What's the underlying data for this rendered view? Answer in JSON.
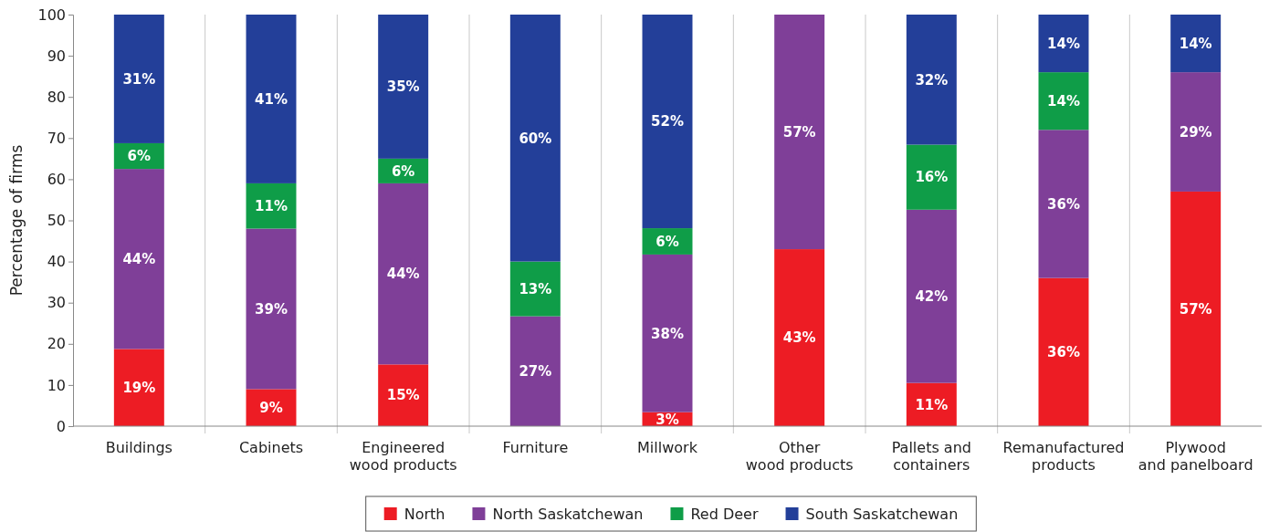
{
  "chart_data": {
    "type": "bar",
    "stacked": true,
    "ylabel": "Percentage of firms",
    "categories": [
      "Buildings",
      "Cabinets",
      "Engineered\nwood products",
      "Furniture",
      "Millwork",
      "Other\nwood products",
      "Pallets and\ncontainers",
      "Remanufactured\nproducts",
      "Plywood\nand panelboard"
    ],
    "series": [
      {
        "name": "North",
        "color": "#ed1c24",
        "values": [
          18.75,
          9,
          15,
          0,
          3.4,
          43,
          10.5,
          36,
          57
        ],
        "value_labels": [
          "19%",
          "9%",
          "15%",
          null,
          "3%",
          "43%",
          "11%",
          "36%",
          "57%"
        ]
      },
      {
        "name": "North Saskatchewan",
        "color": "#7f3f98",
        "values": [
          43.75,
          39,
          44,
          26.7,
          38.3,
          57,
          42.1,
          36,
          29
        ],
        "value_labels": [
          "44%",
          "39%",
          "44%",
          "27%",
          "38%",
          "57%",
          "42%",
          "36%",
          "29%"
        ]
      },
      {
        "name": "Red Deer",
        "color": "#0f9d48",
        "values": [
          6.25,
          11,
          6,
          13.3,
          6.4,
          0,
          15.8,
          14,
          0
        ],
        "value_labels": [
          "6%",
          "11%",
          "6%",
          "13%",
          "6%",
          null,
          "16%",
          "14%",
          null
        ]
      },
      {
        "name": "South Saskatchewan",
        "color": "#233f99",
        "values": [
          31.25,
          41,
          35,
          60,
          51.9,
          0,
          31.6,
          14,
          14
        ],
        "value_labels": [
          "31%",
          "41%",
          "35%",
          "60%",
          "52%",
          null,
          "32%",
          "14%",
          "14%"
        ]
      }
    ],
    "ylim": [
      0,
      100
    ],
    "yticks": [
      0,
      10,
      20,
      30,
      40,
      50,
      60,
      70,
      80,
      90,
      100
    ],
    "grid": "x",
    "legend": "bottom"
  }
}
